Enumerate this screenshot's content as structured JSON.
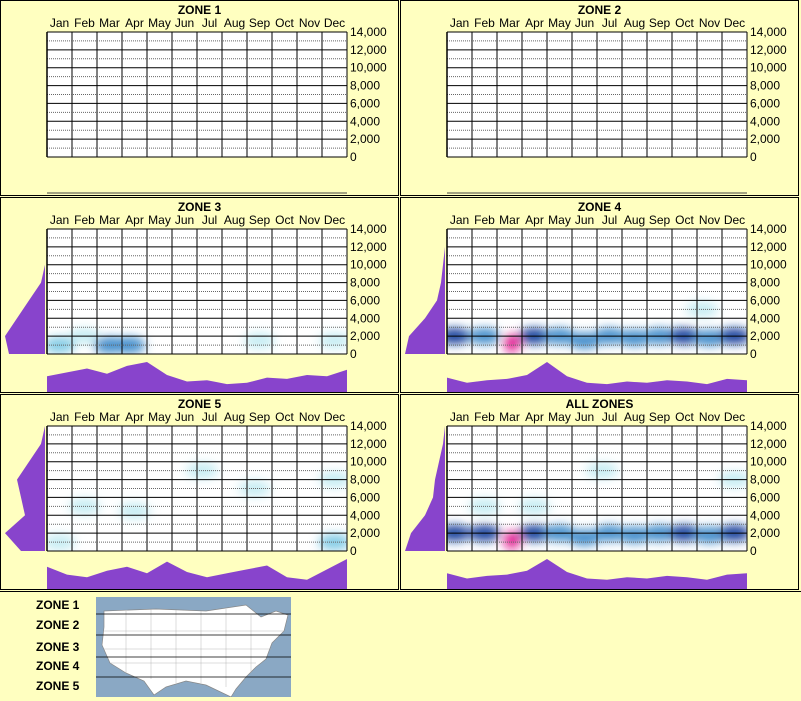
{
  "chart_data": [
    {
      "type": "heatmap",
      "title": "ZONE 1",
      "categories": [
        "Jan",
        "Feb",
        "Mar",
        "Apr",
        "May",
        "Jun",
        "Jul",
        "Aug",
        "Sep",
        "Oct",
        "Nov",
        "Dec"
      ],
      "y_ticks": [
        "14,000",
        "12,000",
        "10,000",
        "8,000",
        "6,000",
        "4,000",
        "2,000",
        "0"
      ],
      "ylim": [
        0,
        14000
      ],
      "grid": true,
      "has_data": false,
      "month_curve": [],
      "elev_curve": [],
      "blobs": []
    },
    {
      "type": "heatmap",
      "title": "ZONE 2",
      "categories": [
        "Jan",
        "Feb",
        "Mar",
        "Apr",
        "May",
        "Jun",
        "Jul",
        "Aug",
        "Sep",
        "Oct",
        "Nov",
        "Dec"
      ],
      "y_ticks": [
        "14,000",
        "12,000",
        "10,000",
        "8,000",
        "6,000",
        "4,000",
        "2,000",
        "0"
      ],
      "ylim": [
        0,
        14000
      ],
      "grid": true,
      "has_data": false,
      "month_curve": [],
      "elev_curve": [],
      "blobs": []
    },
    {
      "type": "heatmap",
      "title": "ZONE 3",
      "categories": [
        "Jan",
        "Feb",
        "Mar",
        "Apr",
        "May",
        "Jun",
        "Jul",
        "Aug",
        "Sep",
        "Oct",
        "Nov",
        "Dec"
      ],
      "y_ticks": [
        "14,000",
        "12,000",
        "10,000",
        "8,000",
        "6,000",
        "4,000",
        "2,000",
        "0"
      ],
      "ylim": [
        0,
        14000
      ],
      "grid": true,
      "has_data": true,
      "month_curve": [
        0.45,
        0.6,
        0.75,
        0.55,
        0.85,
        1.0,
        0.5,
        0.25,
        0.3,
        0.15,
        0.2,
        0.4,
        0.35,
        0.5,
        0.45,
        0.7
      ],
      "elev_curve": [
        0.9,
        1.0,
        0.7,
        0.4,
        0.1,
        0.0,
        0.0,
        0.0
      ],
      "blobs": [
        {
          "month": 0.5,
          "elev": 1000,
          "v": 0.35
        },
        {
          "month": 1.5,
          "elev": 2000,
          "v": 0.25
        },
        {
          "month": 2.5,
          "elev": 1000,
          "v": 0.5
        },
        {
          "month": 3.3,
          "elev": 1000,
          "v": 0.55
        },
        {
          "month": 8.5,
          "elev": 1500,
          "v": 0.15
        },
        {
          "month": 11.5,
          "elev": 1500,
          "v": 0.2
        }
      ]
    },
    {
      "type": "heatmap",
      "title": "ZONE 4",
      "categories": [
        "Jan",
        "Feb",
        "Mar",
        "Apr",
        "May",
        "Jun",
        "Jul",
        "Aug",
        "Sep",
        "Oct",
        "Nov",
        "Dec"
      ],
      "y_ticks": [
        "14,000",
        "12,000",
        "10,000",
        "8,000",
        "6,000",
        "4,000",
        "2,000",
        "0"
      ],
      "ylim": [
        0,
        14000
      ],
      "grid": true,
      "has_data": true,
      "month_curve": [
        0.4,
        0.2,
        0.3,
        0.35,
        0.5,
        1.0,
        0.45,
        0.2,
        0.15,
        0.25,
        0.2,
        0.3,
        0.25,
        0.15,
        0.35,
        0.3
      ],
      "elev_curve": [
        1.0,
        0.9,
        0.5,
        0.2,
        0.1,
        0.05,
        0.0,
        0.0
      ],
      "blobs": [
        {
          "month": 0.3,
          "elev": 2000,
          "v": 0.9
        },
        {
          "month": 1.5,
          "elev": 2000,
          "v": 0.7
        },
        {
          "month": 2.6,
          "elev": 1200,
          "v": 1.3
        },
        {
          "month": 3.5,
          "elev": 2000,
          "v": 0.8
        },
        {
          "month": 4.5,
          "elev": 2000,
          "v": 0.6
        },
        {
          "month": 5.5,
          "elev": 1500,
          "v": 0.5
        },
        {
          "month": 6.5,
          "elev": 2000,
          "v": 0.6
        },
        {
          "month": 7.5,
          "elev": 1800,
          "v": 0.55
        },
        {
          "month": 8.5,
          "elev": 2000,
          "v": 0.6
        },
        {
          "month": 9.5,
          "elev": 2000,
          "v": 0.75
        },
        {
          "month": 10.5,
          "elev": 1800,
          "v": 0.6
        },
        {
          "month": 11.5,
          "elev": 2000,
          "v": 0.8
        },
        {
          "month": 10.2,
          "elev": 5000,
          "v": 0.15
        }
      ]
    },
    {
      "type": "heatmap",
      "title": "ZONE 5",
      "categories": [
        "Jan",
        "Feb",
        "Mar",
        "Apr",
        "May",
        "Jun",
        "Jul",
        "Aug",
        "Sep",
        "Oct",
        "Nov",
        "Dec"
      ],
      "y_ticks": [
        "14,000",
        "12,000",
        "10,000",
        "8,000",
        "6,000",
        "4,000",
        "2,000",
        "0"
      ],
      "ylim": [
        0,
        14000
      ],
      "grid": true,
      "has_data": true,
      "month_curve": [
        0.7,
        0.4,
        0.3,
        0.55,
        0.7,
        0.45,
        0.9,
        0.5,
        0.3,
        0.45,
        0.6,
        0.75,
        0.3,
        0.2,
        0.6,
        1.0
      ],
      "elev_curve": [
        0.6,
        1.0,
        0.5,
        0.6,
        0.7,
        0.4,
        0.1,
        0.0
      ],
      "blobs": [
        {
          "month": 1.5,
          "elev": 5000,
          "v": 0.2
        },
        {
          "month": 3.5,
          "elev": 4500,
          "v": 0.25
        },
        {
          "month": 6.2,
          "elev": 9000,
          "v": 0.1
        },
        {
          "month": 8.3,
          "elev": 7000,
          "v": 0.15
        },
        {
          "month": 11.5,
          "elev": 8000,
          "v": 0.15
        },
        {
          "month": 11.5,
          "elev": 1000,
          "v": 0.35
        },
        {
          "month": 0.5,
          "elev": 1000,
          "v": 0.1
        }
      ]
    },
    {
      "type": "heatmap",
      "title": "ALL ZONES",
      "categories": [
        "Jan",
        "Feb",
        "Mar",
        "Apr",
        "May",
        "Jun",
        "Jul",
        "Aug",
        "Sep",
        "Oct",
        "Nov",
        "Dec"
      ],
      "y_ticks": [
        "14,000",
        "12,000",
        "10,000",
        "8,000",
        "6,000",
        "4,000",
        "2,000",
        "0"
      ],
      "ylim": [
        0,
        14000
      ],
      "grid": true,
      "has_data": true,
      "month_curve": [
        0.45,
        0.25,
        0.35,
        0.4,
        0.55,
        1.0,
        0.5,
        0.25,
        0.2,
        0.3,
        0.25,
        0.35,
        0.3,
        0.2,
        0.4,
        0.45
      ],
      "elev_curve": [
        1.0,
        0.85,
        0.5,
        0.3,
        0.25,
        0.15,
        0.05,
        0.0
      ],
      "blobs": [
        {
          "month": 0.3,
          "elev": 2000,
          "v": 0.9
        },
        {
          "month": 1.5,
          "elev": 2000,
          "v": 0.75
        },
        {
          "month": 2.6,
          "elev": 1200,
          "v": 1.3
        },
        {
          "month": 3.5,
          "elev": 2000,
          "v": 0.8
        },
        {
          "month": 4.5,
          "elev": 2000,
          "v": 0.65
        },
        {
          "month": 5.5,
          "elev": 1500,
          "v": 0.5
        },
        {
          "month": 6.5,
          "elev": 2000,
          "v": 0.65
        },
        {
          "month": 7.5,
          "elev": 1800,
          "v": 0.55
        },
        {
          "month": 8.5,
          "elev": 2000,
          "v": 0.65
        },
        {
          "month": 9.5,
          "elev": 2000,
          "v": 0.75
        },
        {
          "month": 10.5,
          "elev": 1800,
          "v": 0.6
        },
        {
          "month": 11.5,
          "elev": 2000,
          "v": 0.85
        },
        {
          "month": 3.5,
          "elev": 5000,
          "v": 0.2
        },
        {
          "month": 6.2,
          "elev": 9000,
          "v": 0.1
        },
        {
          "month": 11.5,
          "elev": 8000,
          "v": 0.12
        },
        {
          "month": 1.5,
          "elev": 5000,
          "v": 0.15
        }
      ]
    }
  ],
  "legend": {
    "zones": [
      "ZONE 1",
      "ZONE 2",
      "ZONE 3",
      "ZONE 4",
      "ZONE 5"
    ]
  },
  "colors": {
    "background": "#ffffc0",
    "curve": "#8844cc",
    "low": "#a0e8f0",
    "mid": "#0050a0",
    "high": "#ff00aa"
  }
}
